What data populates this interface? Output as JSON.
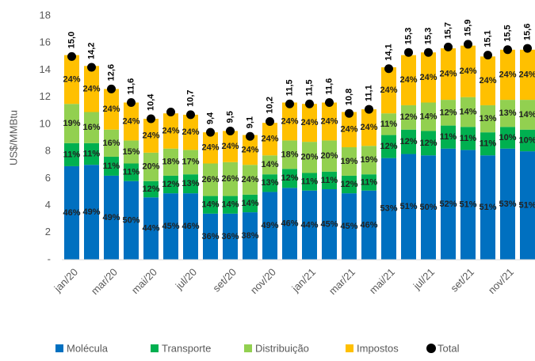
{
  "chart_data": {
    "type": "stacked-bar",
    "y_label": "US$/MMBtu",
    "categories": [
      "jan/20",
      null,
      "mar/20",
      null,
      "mai/20",
      null,
      "jul/20",
      null,
      "set/20",
      null,
      "nov/20",
      null,
      "jan/21",
      null,
      "mar/21",
      null,
      "mai/21",
      null,
      "jul/21",
      null,
      "set/21",
      null,
      "nov/21",
      null
    ],
    "ylim": [
      0,
      18
    ],
    "yticks": [
      {
        "value": 0,
        "label": "-"
      },
      2,
      4,
      6,
      8,
      10,
      12,
      14,
      16,
      18
    ],
    "series": [
      {
        "name": "Molécula",
        "color": "#0070c0",
        "values": [
          6.9,
          7.0,
          6.2,
          5.8,
          4.6,
          4.9,
          4.9,
          3.4,
          3.4,
          3.5,
          5.0,
          5.3,
          5.1,
          5.2,
          4.9,
          5.1,
          7.5,
          7.8,
          7.7,
          8.2,
          8.1,
          7.7,
          8.2,
          8.0
        ],
        "share_labels": [
          "46%",
          "49%",
          "49%",
          "50%",
          "44%",
          "45%",
          "46%",
          "36%",
          "36%",
          "38%",
          "49%",
          "46%",
          "44%",
          "45%",
          "45%",
          "46%",
          "53%",
          "51%",
          "50%",
          "52%",
          "51%",
          "51%",
          "53%",
          "51%"
        ]
      },
      {
        "name": "Transporte",
        "color": "#00b050",
        "values": [
          1.7,
          1.6,
          1.4,
          1.3,
          1.2,
          1.3,
          1.4,
          1.3,
          1.3,
          1.3,
          1.3,
          1.4,
          1.3,
          1.3,
          1.3,
          1.2,
          1.7,
          1.8,
          1.8,
          1.7,
          1.7,
          1.7,
          1.6,
          1.6
        ],
        "share_labels": [
          "11%",
          "11%",
          "11%",
          "11%",
          "12%",
          "12%",
          "13%",
          "14%",
          "14%",
          "14%",
          "13%",
          "12%",
          "11%",
          "11%",
          "12%",
          "11%",
          "12%",
          "12%",
          "12%",
          "11%",
          "11%",
          "11%",
          "10%",
          "10%"
        ]
      },
      {
        "name": "Distribuição",
        "color": "#92d050",
        "values": [
          2.9,
          2.3,
          2.0,
          1.7,
          2.1,
          2.0,
          1.8,
          2.4,
          2.5,
          2.2,
          1.4,
          2.1,
          2.3,
          2.3,
          2.1,
          2.1,
          1.6,
          1.8,
          2.1,
          1.9,
          2.2,
          2.0,
          2.0,
          2.2
        ],
        "share_labels": [
          "19%",
          "16%",
          "16%",
          "15%",
          "20%",
          "18%",
          "17%",
          "26%",
          "26%",
          "24%",
          "14%",
          "18%",
          "20%",
          "20%",
          "19%",
          "19%",
          "11%",
          "12%",
          "14%",
          "12%",
          "14%",
          "13%",
          "13%",
          "14%"
        ]
      },
      {
        "name": "Impostos",
        "color": "#ffc000",
        "values": [
          3.6,
          3.4,
          3.0,
          2.8,
          2.5,
          2.6,
          2.6,
          2.3,
          2.3,
          2.2,
          2.4,
          2.8,
          2.8,
          2.8,
          2.6,
          2.7,
          3.4,
          3.7,
          3.7,
          3.8,
          3.8,
          3.6,
          3.7,
          3.7
        ],
        "share_labels": [
          "24%",
          "24%",
          "24%",
          "24%",
          "24%",
          "24%",
          "24%",
          "24%",
          "24%",
          "24%",
          "24%",
          "24%",
          "24%",
          "24%",
          "24%",
          "24%",
          "24%",
          "24%",
          "24%",
          "24%",
          "24%",
          "24%",
          "24%",
          "24%"
        ]
      }
    ],
    "total": {
      "name": "Total",
      "color": "#000000",
      "values": [
        15.0,
        14.2,
        12.6,
        11.6,
        10.4,
        10.9,
        10.7,
        9.4,
        9.5,
        9.1,
        10.2,
        11.5,
        11.5,
        11.6,
        10.8,
        11.1,
        14.1,
        15.3,
        15.3,
        15.7,
        15.9,
        15.1,
        15.5,
        15.6
      ],
      "value_labels": [
        "15,0",
        "14,2",
        "12,6",
        "11,6",
        "10,4",
        null,
        "10,7",
        "9,4",
        "9,5",
        "9,1",
        "10,2",
        "11,5",
        "11,5",
        "11,6",
        "10,8",
        "11,1",
        "14,1",
        "15,3",
        "15,3",
        "15,7",
        "15,9",
        "15,1",
        "15,5",
        "15,6"
      ]
    },
    "legend": "bottom"
  }
}
